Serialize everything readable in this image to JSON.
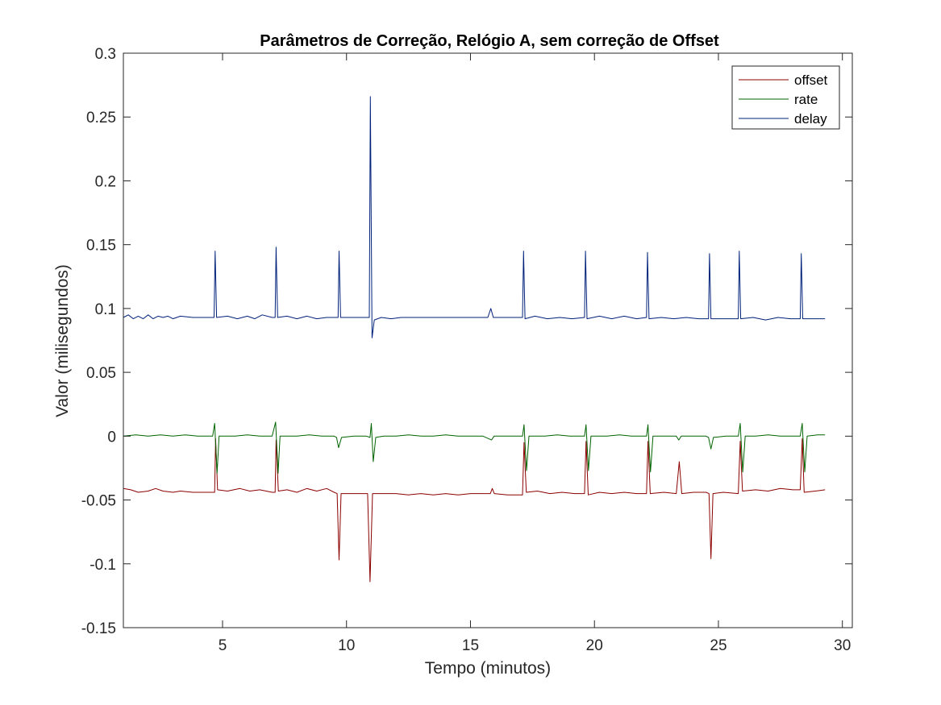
{
  "chart_data": {
    "type": "line",
    "title": "Parâmetros de Correção, Relógio A, sem correção de Offset",
    "xlabel": "Tempo (minutos)",
    "ylabel": "Valor (milisegundos)",
    "xlim": [
      1,
      30.4
    ],
    "ylim": [
      -0.15,
      0.3
    ],
    "xticks": [
      5,
      10,
      15,
      20,
      25,
      30
    ],
    "xtick_labels": [
      "5",
      "10",
      "15",
      "20",
      "25",
      "30"
    ],
    "yticks": [
      -0.15,
      -0.1,
      -0.05,
      0,
      0.05,
      0.1,
      0.15,
      0.2,
      0.25,
      0.3
    ],
    "ytick_labels": [
      "-0.15",
      "-0.1",
      "-0.05",
      "0",
      "0.05",
      "0.1",
      "0.15",
      "0.2",
      "0.25",
      "0.3"
    ],
    "grid": false,
    "legend_position": "top-right",
    "series": [
      {
        "name": "offset",
        "color": "#8b0000",
        "points": [
          [
            1.0,
            -0.041
          ],
          [
            1.3,
            -0.042
          ],
          [
            1.6,
            -0.044
          ],
          [
            2.0,
            -0.043
          ],
          [
            2.3,
            -0.041
          ],
          [
            2.6,
            -0.043
          ],
          [
            3.0,
            -0.044
          ],
          [
            3.3,
            -0.043
          ],
          [
            3.8,
            -0.044
          ],
          [
            4.3,
            -0.044
          ],
          [
            4.6,
            -0.044
          ],
          [
            4.68,
            -0.044
          ],
          [
            4.72,
            -0.002
          ],
          [
            4.8,
            -0.042
          ],
          [
            5.2,
            -0.043
          ],
          [
            5.7,
            -0.041
          ],
          [
            6.1,
            -0.043
          ],
          [
            6.5,
            -0.042
          ],
          [
            7.0,
            -0.044
          ],
          [
            7.12,
            -0.044
          ],
          [
            7.16,
            -0.003
          ],
          [
            7.25,
            -0.043
          ],
          [
            7.6,
            -0.042
          ],
          [
            8.0,
            -0.044
          ],
          [
            8.4,
            -0.041
          ],
          [
            8.8,
            -0.043
          ],
          [
            9.2,
            -0.041
          ],
          [
            9.5,
            -0.044
          ],
          [
            9.62,
            -0.045
          ],
          [
            9.7,
            -0.097
          ],
          [
            9.78,
            -0.045
          ],
          [
            10.1,
            -0.045
          ],
          [
            10.5,
            -0.045
          ],
          [
            10.85,
            -0.045
          ],
          [
            10.95,
            -0.114
          ],
          [
            11.05,
            -0.045
          ],
          [
            11.5,
            -0.045
          ],
          [
            12.0,
            -0.045
          ],
          [
            12.5,
            -0.046
          ],
          [
            13.0,
            -0.045
          ],
          [
            13.5,
            -0.046
          ],
          [
            14.0,
            -0.045
          ],
          [
            14.5,
            -0.046
          ],
          [
            15.0,
            -0.045
          ],
          [
            15.5,
            -0.045
          ],
          [
            15.8,
            -0.045
          ],
          [
            15.88,
            -0.041
          ],
          [
            15.96,
            -0.045
          ],
          [
            16.5,
            -0.046
          ],
          [
            17.1,
            -0.046
          ],
          [
            17.16,
            -0.005
          ],
          [
            17.25,
            -0.044
          ],
          [
            17.7,
            -0.043
          ],
          [
            18.2,
            -0.045
          ],
          [
            18.7,
            -0.044
          ],
          [
            19.2,
            -0.045
          ],
          [
            19.6,
            -0.045
          ],
          [
            19.66,
            -0.004
          ],
          [
            19.75,
            -0.046
          ],
          [
            20.2,
            -0.044
          ],
          [
            20.7,
            -0.045
          ],
          [
            21.2,
            -0.044
          ],
          [
            21.7,
            -0.045
          ],
          [
            22.1,
            -0.045
          ],
          [
            22.16,
            -0.004
          ],
          [
            22.25,
            -0.045
          ],
          [
            22.8,
            -0.044
          ],
          [
            23.3,
            -0.045
          ],
          [
            23.42,
            -0.02
          ],
          [
            23.52,
            -0.045
          ],
          [
            24.0,
            -0.044
          ],
          [
            24.5,
            -0.044
          ],
          [
            24.62,
            -0.045
          ],
          [
            24.7,
            -0.096
          ],
          [
            24.78,
            -0.045
          ],
          [
            25.2,
            -0.044
          ],
          [
            25.8,
            -0.045
          ],
          [
            25.88,
            -0.004
          ],
          [
            25.97,
            -0.043
          ],
          [
            26.5,
            -0.042
          ],
          [
            27.0,
            -0.043
          ],
          [
            27.5,
            -0.041
          ],
          [
            28.0,
            -0.042
          ],
          [
            28.3,
            -0.042
          ],
          [
            28.38,
            -0.002
          ],
          [
            28.46,
            -0.044
          ],
          [
            28.9,
            -0.043
          ],
          [
            29.3,
            -0.042
          ]
        ]
      },
      {
        "name": "rate",
        "color": "#006400",
        "points": [
          [
            1.0,
            0.0
          ],
          [
            1.5,
            0.001
          ],
          [
            2.0,
            0.0
          ],
          [
            2.5,
            0.001
          ],
          [
            3.0,
            0.0
          ],
          [
            3.5,
            0.001
          ],
          [
            4.0,
            0.0
          ],
          [
            4.6,
            0.0
          ],
          [
            4.68,
            0.01
          ],
          [
            4.78,
            -0.029
          ],
          [
            4.86,
            0.0
          ],
          [
            5.5,
            0.0
          ],
          [
            6.0,
            0.001
          ],
          [
            6.5,
            0.0
          ],
          [
            7.0,
            0.0
          ],
          [
            7.14,
            0.011
          ],
          [
            7.24,
            -0.029
          ],
          [
            7.32,
            0.0
          ],
          [
            8.0,
            0.0
          ],
          [
            8.5,
            0.001
          ],
          [
            9.0,
            0.0
          ],
          [
            9.5,
            0.0
          ],
          [
            9.6,
            -0.001
          ],
          [
            9.68,
            -0.009
          ],
          [
            9.8,
            -0.001
          ],
          [
            10.3,
            0.0
          ],
          [
            10.8,
            0.0
          ],
          [
            10.95,
            -0.001
          ],
          [
            11.0,
            0.01
          ],
          [
            11.08,
            -0.02
          ],
          [
            11.18,
            -0.001
          ],
          [
            11.5,
            0.0
          ],
          [
            12.0,
            0.0
          ],
          [
            12.5,
            0.001
          ],
          [
            13.0,
            0.0
          ],
          [
            13.5,
            0.0
          ],
          [
            14.0,
            0.001
          ],
          [
            14.5,
            0.0
          ],
          [
            15.0,
            0.0
          ],
          [
            15.5,
            0.0
          ],
          [
            15.85,
            -0.003
          ],
          [
            15.95,
            0.0
          ],
          [
            16.5,
            0.0
          ],
          [
            17.1,
            0.0
          ],
          [
            17.16,
            0.009
          ],
          [
            17.26,
            -0.027
          ],
          [
            17.36,
            0.0
          ],
          [
            18.0,
            0.0
          ],
          [
            18.5,
            0.001
          ],
          [
            19.0,
            0.0
          ],
          [
            19.6,
            0.0
          ],
          [
            19.66,
            0.009
          ],
          [
            19.76,
            -0.027
          ],
          [
            19.86,
            0.0
          ],
          [
            20.5,
            0.0
          ],
          [
            21.0,
            0.001
          ],
          [
            21.5,
            0.0
          ],
          [
            22.1,
            0.0
          ],
          [
            22.16,
            0.009
          ],
          [
            22.26,
            -0.028
          ],
          [
            22.36,
            0.0
          ],
          [
            22.8,
            0.0
          ],
          [
            23.3,
            0.0
          ],
          [
            23.4,
            -0.003
          ],
          [
            23.5,
            0.0
          ],
          [
            24.0,
            0.0
          ],
          [
            24.5,
            0.0
          ],
          [
            24.6,
            -0.001
          ],
          [
            24.7,
            -0.01
          ],
          [
            24.8,
            -0.001
          ],
          [
            25.3,
            0.0
          ],
          [
            25.8,
            0.0
          ],
          [
            25.88,
            0.01
          ],
          [
            25.98,
            -0.028
          ],
          [
            26.08,
            0.0
          ],
          [
            26.5,
            0.0
          ],
          [
            27.0,
            0.001
          ],
          [
            27.5,
            0.0
          ],
          [
            28.3,
            0.0
          ],
          [
            28.38,
            0.01
          ],
          [
            28.48,
            -0.028
          ],
          [
            28.58,
            0.0
          ],
          [
            29.0,
            0.001
          ],
          [
            29.3,
            0.001
          ]
        ]
      },
      {
        "name": "delay",
        "color": "#00207a",
        "points": [
          [
            1.0,
            0.093
          ],
          [
            1.2,
            0.095
          ],
          [
            1.4,
            0.092
          ],
          [
            1.6,
            0.094
          ],
          [
            1.8,
            0.092
          ],
          [
            2.0,
            0.095
          ],
          [
            2.2,
            0.092
          ],
          [
            2.4,
            0.094
          ],
          [
            2.6,
            0.093
          ],
          [
            2.8,
            0.094
          ],
          [
            3.0,
            0.092
          ],
          [
            3.3,
            0.094
          ],
          [
            3.8,
            0.093
          ],
          [
            4.3,
            0.093
          ],
          [
            4.6,
            0.093
          ],
          [
            4.66,
            0.093
          ],
          [
            4.7,
            0.145
          ],
          [
            4.76,
            0.093
          ],
          [
            5.2,
            0.094
          ],
          [
            5.6,
            0.092
          ],
          [
            6.0,
            0.094
          ],
          [
            6.3,
            0.092
          ],
          [
            6.6,
            0.095
          ],
          [
            7.0,
            0.093
          ],
          [
            7.12,
            0.093
          ],
          [
            7.16,
            0.148
          ],
          [
            7.22,
            0.093
          ],
          [
            7.6,
            0.094
          ],
          [
            8.0,
            0.092
          ],
          [
            8.4,
            0.094
          ],
          [
            8.8,
            0.092
          ],
          [
            9.2,
            0.093
          ],
          [
            9.6,
            0.093
          ],
          [
            9.66,
            0.093
          ],
          [
            9.7,
            0.145
          ],
          [
            9.76,
            0.093
          ],
          [
            10.2,
            0.093
          ],
          [
            10.8,
            0.093
          ],
          [
            10.92,
            0.093
          ],
          [
            10.96,
            0.266
          ],
          [
            11.03,
            0.077
          ],
          [
            11.12,
            0.091
          ],
          [
            11.4,
            0.093
          ],
          [
            11.8,
            0.092
          ],
          [
            12.2,
            0.093
          ],
          [
            12.7,
            0.093
          ],
          [
            13.2,
            0.093
          ],
          [
            13.7,
            0.093
          ],
          [
            14.2,
            0.093
          ],
          [
            14.7,
            0.093
          ],
          [
            15.2,
            0.093
          ],
          [
            15.7,
            0.093
          ],
          [
            15.82,
            0.1
          ],
          [
            15.92,
            0.093
          ],
          [
            16.4,
            0.093
          ],
          [
            17.1,
            0.093
          ],
          [
            17.14,
            0.145
          ],
          [
            17.2,
            0.092
          ],
          [
            17.6,
            0.094
          ],
          [
            18.1,
            0.092
          ],
          [
            18.6,
            0.093
          ],
          [
            19.1,
            0.092
          ],
          [
            19.6,
            0.093
          ],
          [
            19.64,
            0.145
          ],
          [
            19.7,
            0.092
          ],
          [
            20.2,
            0.094
          ],
          [
            20.7,
            0.092
          ],
          [
            21.2,
            0.094
          ],
          [
            21.7,
            0.092
          ],
          [
            22.1,
            0.093
          ],
          [
            22.14,
            0.144
          ],
          [
            22.2,
            0.092
          ],
          [
            22.7,
            0.093
          ],
          [
            23.2,
            0.092
          ],
          [
            23.7,
            0.093
          ],
          [
            24.2,
            0.092
          ],
          [
            24.6,
            0.092
          ],
          [
            24.64,
            0.143
          ],
          [
            24.7,
            0.092
          ],
          [
            25.2,
            0.092
          ],
          [
            25.8,
            0.092
          ],
          [
            25.84,
            0.145
          ],
          [
            25.9,
            0.092
          ],
          [
            26.4,
            0.093
          ],
          [
            26.9,
            0.091
          ],
          [
            27.4,
            0.093
          ],
          [
            27.9,
            0.092
          ],
          [
            28.3,
            0.092
          ],
          [
            28.34,
            0.143
          ],
          [
            28.4,
            0.092
          ],
          [
            28.9,
            0.092
          ],
          [
            29.3,
            0.092
          ]
        ]
      }
    ]
  }
}
